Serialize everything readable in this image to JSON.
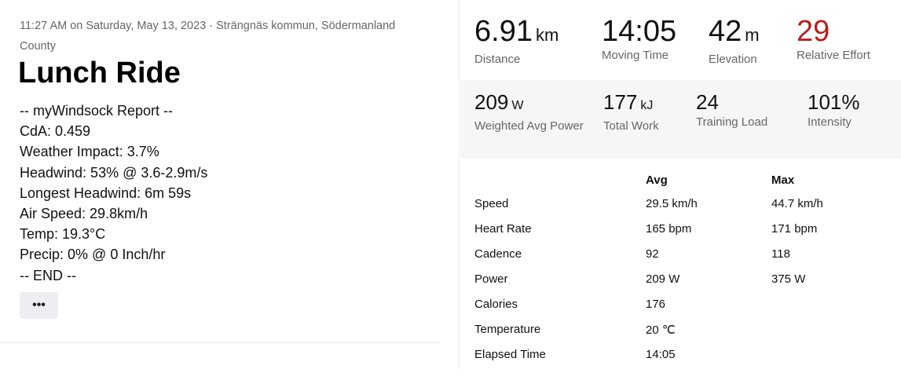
{
  "activity": {
    "meta": "11:27 AM on Saturday, May 13, 2023 · Strängnäs kommun, Södermanland County",
    "title": "Lunch Ride",
    "report": [
      "-- myWindsock Report --",
      "CdA: 0.459",
      "Weather Impact: 3.7%",
      "Headwind: 53% @ 3.6-2.9m/s",
      "Longest Headwind: 6m 59s",
      "Air Speed: 29.8km/h",
      "Temp: 19.3°C",
      "Precip: 0% @ 0 Inch/hr",
      "-- END --"
    ],
    "more_label": "•••"
  },
  "primary_stats": [
    {
      "value": "6.91",
      "unit": "km",
      "label": "Distance"
    },
    {
      "value": "14:05",
      "unit": "",
      "label": "Moving Time"
    },
    {
      "value": "42",
      "unit": "m",
      "label": "Elevation"
    },
    {
      "value": "29",
      "unit": "",
      "label": "Relative Effort",
      "color": "#b51f1f"
    }
  ],
  "secondary_stats": [
    {
      "value": "209",
      "unit": "W",
      "label": "Weighted Avg Power"
    },
    {
      "value": "177",
      "unit": "kJ",
      "label": "Total Work"
    },
    {
      "value": "24",
      "unit": "",
      "label": "Training Load"
    },
    {
      "value": "101%",
      "unit": "",
      "label": "Intensity"
    }
  ],
  "table": {
    "headers": [
      "",
      "Avg",
      "Max"
    ],
    "rows": [
      [
        "Speed",
        "29.5 km/h",
        "44.7 km/h"
      ],
      [
        "Heart Rate",
        "165 bpm",
        "171 bpm"
      ],
      [
        "Cadence",
        "92",
        "118"
      ],
      [
        "Power",
        "209 W",
        "375 W"
      ],
      [
        "Calories",
        "176",
        ""
      ],
      [
        "Temperature",
        "20 ℃",
        ""
      ],
      [
        "Elapsed Time",
        "14:05",
        ""
      ]
    ]
  }
}
